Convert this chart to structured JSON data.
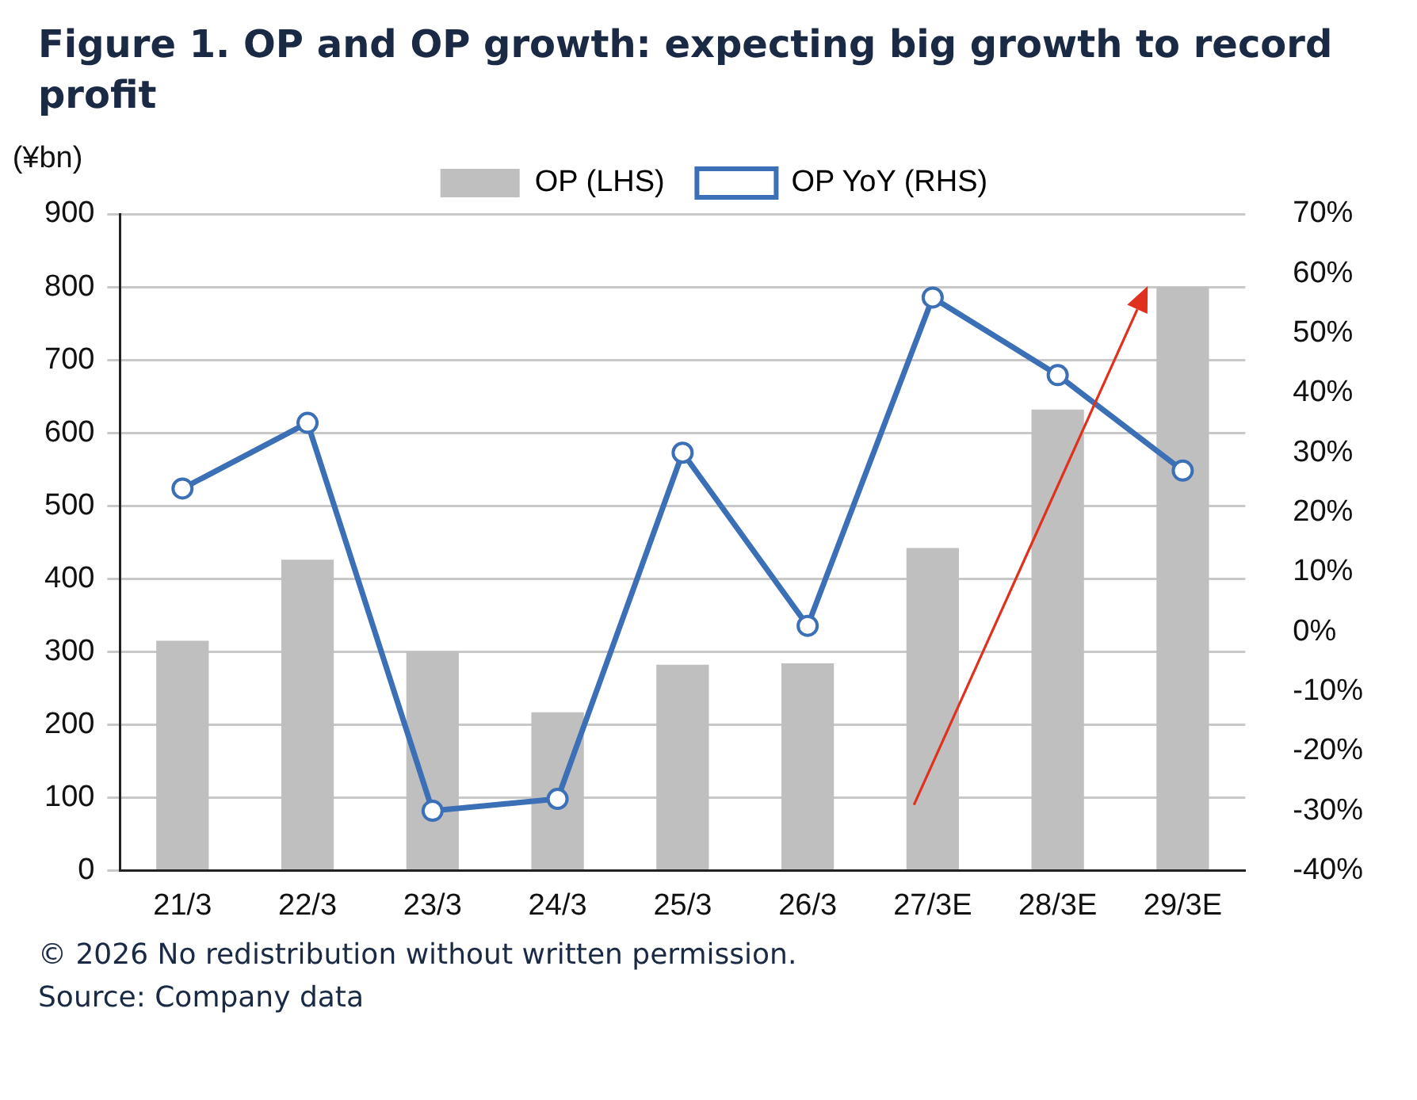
{
  "chart_data": {
    "type": "bar",
    "title": "Figure 1. OP and OP growth: expecting big growth to record profit",
    "ylabel": "(¥bn)",
    "categories": [
      "21/3",
      "22/3",
      "23/3",
      "24/3",
      "25/3",
      "26/3",
      "27/3E",
      "28/3E",
      "29/3E"
    ],
    "series": [
      {
        "name": "OP (LHS)",
        "color": "#bfbfbf",
        "values": [
          315,
          426,
          300,
          217,
          282,
          284,
          442,
          632,
          800
        ]
      },
      {
        "name": "OP YoY (RHS)",
        "type": "line",
        "axis": "y2",
        "color": "#3b6fb6",
        "marker": "circle",
        "line_style": "solid",
        "values": [
          24,
          35,
          -30,
          -28,
          30,
          1,
          56,
          43,
          27
        ]
      }
    ],
    "ylim": [
      0,
      900
    ],
    "yticks": [
      0,
      100,
      200,
      300,
      400,
      500,
      600,
      700,
      800,
      900
    ],
    "y2lim": [
      -40,
      70
    ],
    "y2ticks": [
      {
        "value": 70,
        "label": "70%"
      },
      {
        "value": 60,
        "label": "60%"
      },
      {
        "value": 50,
        "label": "50%"
      },
      {
        "value": 40,
        "label": "40%"
      },
      {
        "value": 30,
        "label": "30%"
      },
      {
        "value": 20,
        "label": "20%"
      },
      {
        "value": 10,
        "label": "10%"
      },
      {
        "value": 0,
        "label": "0%"
      },
      {
        "value": -10,
        "label": "-10%"
      },
      {
        "value": -20,
        "label": "-20%"
      },
      {
        "value": -30,
        "label": "-30%"
      },
      {
        "value": -40,
        "label": "-40%"
      }
    ],
    "grid": "y",
    "legend": "top",
    "annotations": [
      "© 2026 No redistribution without written permission.",
      "Source: Company data"
    ]
  }
}
